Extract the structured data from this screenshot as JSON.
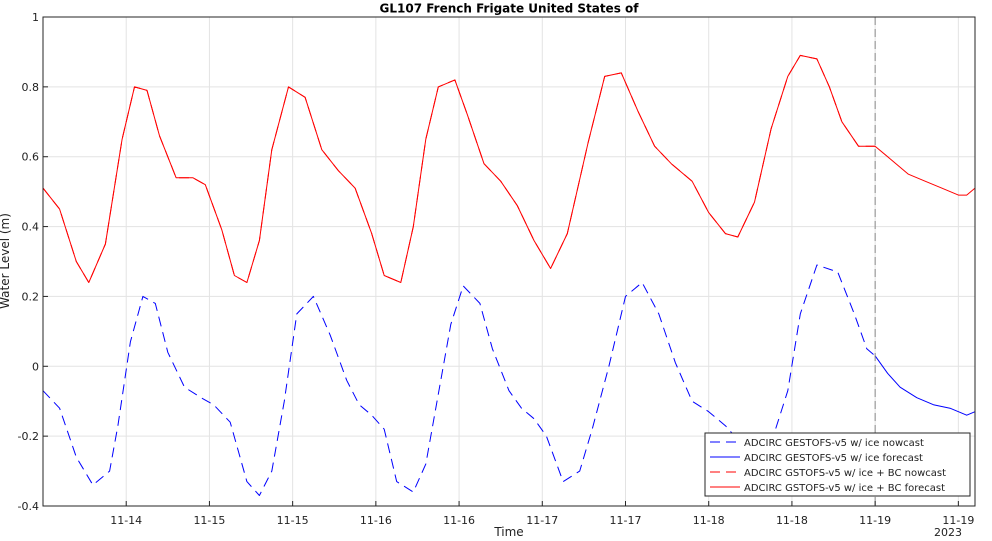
{
  "chart_data": {
    "type": "line",
    "title": "GL107 French Frigate United States of",
    "xlabel": "Time",
    "ylabel": "Water Level (m)",
    "ylim": [
      -0.4,
      1
    ],
    "yticks": [
      "-0.4",
      "-0.2",
      "0",
      "0.2",
      "0.4",
      "0.6",
      "0.8",
      "1"
    ],
    "xlim_days": [
      0,
      11.2
    ],
    "xticks": [
      {
        "label": "11-14",
        "day": 1.0
      },
      {
        "label": "11-15",
        "day": 2.0
      },
      {
        "label": "11-15",
        "day": 3.0
      },
      {
        "label": "11-16",
        "day": 4.0
      },
      {
        "label": "11-16",
        "day": 5.0
      },
      {
        "label": "11-17",
        "day": 6.0
      },
      {
        "label": "11-17",
        "day": 7.0
      },
      {
        "label": "11-18",
        "day": 8.0
      },
      {
        "label": "11-18",
        "day": 9.0
      },
      {
        "label": "11-19",
        "day": 10.0
      },
      {
        "label": "11-19",
        "day": 11.0
      }
    ],
    "year_label": "2023",
    "nowcast_end_day": 10.0,
    "grid": true,
    "legend_position": "bottom-right",
    "series": [
      {
        "name": "ADCIRC GESTOFS-v5 w/ ice nowcast",
        "color": "#0000ff",
        "dash": true,
        "x": [
          0,
          0.2,
          0.4,
          0.6,
          0.8,
          0.9,
          1.05,
          1.2,
          1.35,
          1.5,
          1.7,
          1.9,
          2.05,
          2.25,
          2.45,
          2.6,
          2.75,
          2.9,
          3.05,
          3.25,
          3.45,
          3.65,
          3.8,
          3.95,
          4.1,
          4.25,
          4.45,
          4.6,
          4.75,
          4.9,
          5.05,
          5.25,
          5.4,
          5.6,
          5.75,
          5.9,
          6.05,
          6.25,
          6.45,
          6.6,
          6.8,
          7.0,
          7.2,
          7.4,
          7.6,
          7.8,
          8.0,
          8.2,
          8.35,
          8.55,
          8.75,
          8.95,
          9.1,
          9.3,
          9.55,
          9.75,
          9.9,
          10.0
        ],
        "y": [
          -0.07,
          -0.12,
          -0.26,
          -0.34,
          -0.3,
          -0.17,
          0.07,
          0.2,
          0.18,
          0.04,
          -0.06,
          -0.09,
          -0.11,
          -0.16,
          -0.33,
          -0.37,
          -0.3,
          -0.1,
          0.15,
          0.2,
          0.09,
          -0.04,
          -0.11,
          -0.14,
          -0.18,
          -0.33,
          -0.36,
          -0.28,
          -0.08,
          0.12,
          0.23,
          0.18,
          0.05,
          -0.07,
          -0.12,
          -0.15,
          -0.2,
          -0.33,
          -0.3,
          -0.18,
          0.0,
          0.2,
          0.24,
          0.15,
          0.01,
          -0.1,
          -0.13,
          -0.17,
          -0.21,
          -0.24,
          -0.22,
          -0.07,
          0.15,
          0.29,
          0.27,
          0.15,
          0.05,
          0.03
        ]
      },
      {
        "name": "ADCIRC GESTOFS-v5 w/ ice forecast",
        "color": "#0000ff",
        "dash": false,
        "x": [
          10.0,
          10.15,
          10.3,
          10.5,
          10.7,
          10.9,
          11.0,
          11.1,
          11.2
        ],
        "y": [
          0.03,
          -0.02,
          -0.06,
          -0.09,
          -0.11,
          -0.12,
          -0.13,
          -0.14,
          -0.13
        ]
      },
      {
        "name": "ADCIRC GSTOFS-v5 w/ ice + BC nowcast",
        "color": "#ff0000",
        "dash": true,
        "x": [
          0,
          0.2,
          0.4,
          0.55,
          0.75,
          0.95,
          1.1,
          1.25,
          1.4,
          1.6,
          1.8,
          1.95,
          2.15,
          2.3,
          2.45,
          2.6,
          2.75,
          2.95,
          3.15,
          3.35,
          3.55,
          3.75,
          3.95,
          4.1,
          4.3,
          4.45,
          4.6,
          4.75,
          4.95,
          5.1,
          5.3,
          5.5,
          5.7,
          5.9,
          6.1,
          6.3,
          6.55,
          6.75,
          6.95,
          7.15,
          7.35,
          7.55,
          7.8,
          8.0,
          8.2,
          8.35,
          8.55,
          8.75,
          8.95,
          9.1,
          9.3,
          9.45,
          9.6,
          9.8,
          10.0
        ],
        "y": [
          0.51,
          0.45,
          0.3,
          0.24,
          0.35,
          0.65,
          0.8,
          0.79,
          0.66,
          0.54,
          0.54,
          0.52,
          0.39,
          0.26,
          0.24,
          0.36,
          0.62,
          0.8,
          0.77,
          0.62,
          0.56,
          0.51,
          0.38,
          0.26,
          0.24,
          0.4,
          0.65,
          0.8,
          0.82,
          0.72,
          0.58,
          0.53,
          0.46,
          0.36,
          0.28,
          0.38,
          0.64,
          0.83,
          0.84,
          0.73,
          0.63,
          0.58,
          0.53,
          0.44,
          0.38,
          0.37,
          0.47,
          0.68,
          0.83,
          0.89,
          0.88,
          0.8,
          0.7,
          0.63,
          0.63
        ]
      },
      {
        "name": "ADCIRC GSTOFS-v5 w/ ice + BC forecast",
        "color": "#ff0000",
        "dash": false,
        "x": [
          0,
          0.2,
          0.4,
          0.55,
          0.75,
          0.95,
          1.1,
          1.25,
          1.4,
          1.6,
          1.8,
          1.95,
          2.15,
          2.3,
          2.45,
          2.6,
          2.75,
          2.95,
          3.15,
          3.35,
          3.55,
          3.75,
          3.95,
          4.1,
          4.3,
          4.45,
          4.6,
          4.75,
          4.95,
          5.1,
          5.3,
          5.5,
          5.7,
          5.9,
          6.1,
          6.3,
          6.55,
          6.75,
          6.95,
          7.15,
          7.35,
          7.55,
          7.8,
          8.0,
          8.2,
          8.35,
          8.55,
          8.75,
          8.95,
          9.1,
          9.3,
          9.45,
          9.6,
          9.8,
          10.0,
          10.2,
          10.4,
          10.6,
          10.8,
          11.0,
          11.1,
          11.2
        ],
        "y": [
          0.51,
          0.45,
          0.3,
          0.24,
          0.35,
          0.65,
          0.8,
          0.79,
          0.66,
          0.54,
          0.54,
          0.52,
          0.39,
          0.26,
          0.24,
          0.36,
          0.62,
          0.8,
          0.77,
          0.62,
          0.56,
          0.51,
          0.38,
          0.26,
          0.24,
          0.4,
          0.65,
          0.8,
          0.82,
          0.72,
          0.58,
          0.53,
          0.46,
          0.36,
          0.28,
          0.38,
          0.64,
          0.83,
          0.84,
          0.73,
          0.63,
          0.58,
          0.53,
          0.44,
          0.38,
          0.37,
          0.47,
          0.68,
          0.83,
          0.89,
          0.88,
          0.8,
          0.7,
          0.63,
          0.63,
          0.59,
          0.55,
          0.53,
          0.51,
          0.49,
          0.49,
          0.51
        ]
      }
    ]
  }
}
